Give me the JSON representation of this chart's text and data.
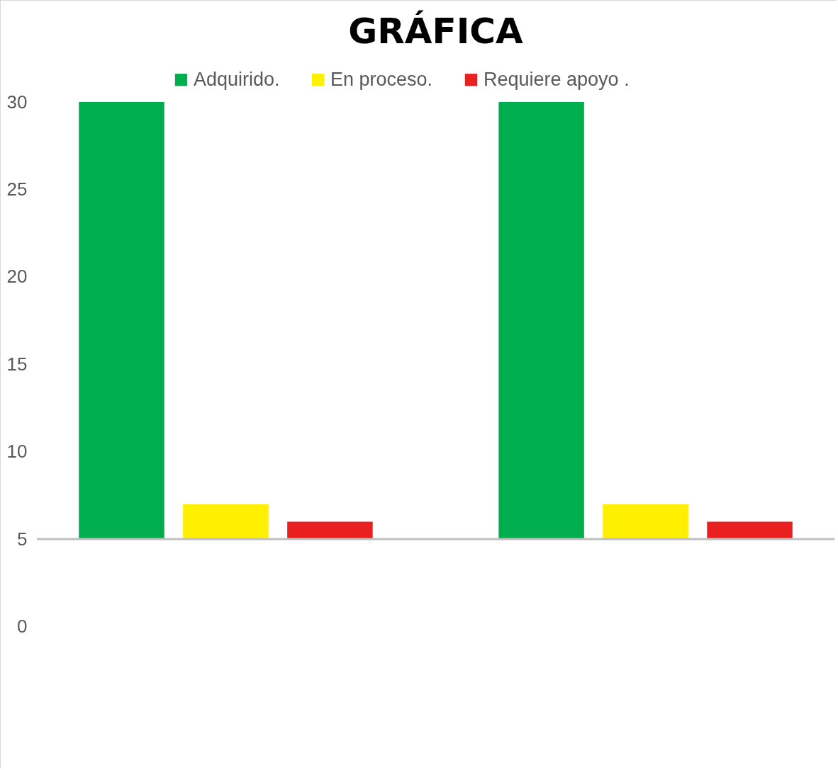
{
  "chart_data": {
    "type": "bar",
    "title": "GRÁFICA",
    "categories": [
      null,
      null
    ],
    "series": [
      {
        "name": "Adquirido.",
        "color": "#00ae4f",
        "values": [
          25,
          25
        ],
        "base": [
          5,
          5
        ]
      },
      {
        "name": "En proceso.",
        "color": "#ffef00",
        "values": [
          2,
          2
        ],
        "base": [
          5,
          5
        ]
      },
      {
        "name": "Requiere apoyo .",
        "color": "#e8201f",
        "values": [
          1,
          1
        ],
        "base": [
          5,
          5
        ]
      }
    ],
    "ylim": [
      -8,
      30
    ],
    "yticks": [
      0,
      5,
      10,
      15,
      20,
      25,
      30
    ],
    "grid": false,
    "legend": "top",
    "ref_lines": [
      {
        "axis": "y",
        "value": 5,
        "color": "#bfbfbf"
      }
    ]
  }
}
